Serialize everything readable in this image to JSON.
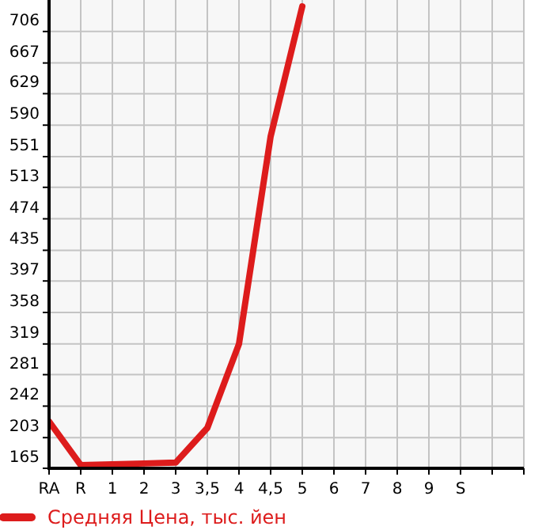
{
  "chart_data": {
    "type": "line",
    "categories": [
      "RA",
      "R",
      "1",
      "2",
      "3",
      "3,5",
      "4",
      "4,5",
      "5",
      "6",
      "7",
      "8",
      "9",
      "S",
      null,
      null
    ],
    "series": [
      {
        "name": "Средняя Цена, тыс. йен",
        "color": "#dd1c1c",
        "values": [
          223,
          169,
          170,
          171,
          172,
          215,
          319,
          576,
          737,
          null,
          null,
          null,
          null,
          null,
          null,
          null
        ]
      }
    ],
    "ylim": [
      165,
      745
    ],
    "yticks": [
      165,
      203,
      242,
      281,
      319,
      358,
      397,
      435,
      474,
      513,
      551,
      590,
      629,
      667,
      706
    ],
    "grid": true,
    "legend": "bottom",
    "marker": "none",
    "line_style": "solid"
  }
}
